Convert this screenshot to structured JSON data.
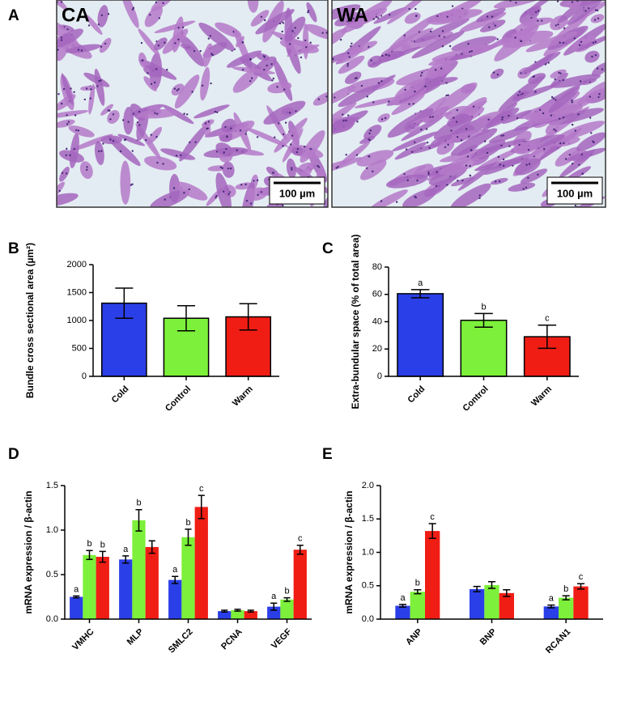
{
  "figure": {
    "panel_a": {
      "label": "A",
      "images": [
        {
          "label": "CA",
          "scale_bar": "100 µm"
        },
        {
          "label": "WA",
          "scale_bar": "100 µm"
        }
      ]
    }
  },
  "chart_data": [
    {
      "type": "bar",
      "panel": "B",
      "ylabel": "Bundle cross sectional area (µm²)",
      "categories": [
        "Cold",
        "Control",
        "Warm"
      ],
      "values": [
        1310,
        1040,
        1065
      ],
      "errors": [
        270,
        225,
        235
      ],
      "colors": [
        "#2b3fe8",
        "#7cf03a",
        "#f01d14"
      ],
      "ylim": [
        0,
        2000
      ],
      "yticks": [
        0,
        500,
        1000,
        1500,
        2000
      ]
    },
    {
      "type": "bar",
      "panel": "C",
      "ylabel": "Extra-bundular space (% of total area)",
      "categories": [
        "Cold",
        "Control",
        "Warm"
      ],
      "values": [
        60.5,
        41,
        29
      ],
      "errors": [
        3,
        5,
        8.5
      ],
      "annotations": [
        "a",
        "b",
        "c"
      ],
      "colors": [
        "#2b3fe8",
        "#7cf03a",
        "#f01d14"
      ],
      "ylim": [
        0,
        80
      ],
      "yticks": [
        0,
        20,
        40,
        60,
        80
      ]
    },
    {
      "type": "grouped_bar",
      "panel": "D",
      "ylabel": "mRNA expression / β-actin",
      "categories": [
        "VMHC",
        "MLP",
        "SMLC2",
        "PCNA",
        "VEGF"
      ],
      "series": [
        {
          "color": "#2b3fe8",
          "values": [
            0.25,
            0.67,
            0.44,
            0.09,
            0.14
          ],
          "errors": [
            0.01,
            0.04,
            0.04,
            0.01,
            0.04
          ],
          "annotations": [
            "a",
            "a",
            "a",
            null,
            "a"
          ]
        },
        {
          "color": "#7cf03a",
          "values": [
            0.72,
            1.11,
            0.92,
            0.1,
            0.22
          ],
          "errors": [
            0.05,
            0.12,
            0.09,
            0.01,
            0.02
          ],
          "annotations": [
            "b",
            "b",
            "b",
            null,
            "b"
          ]
        },
        {
          "color": "#f01d14",
          "values": [
            0.7,
            0.81,
            1.26,
            0.09,
            0.78
          ],
          "errors": [
            0.06,
            0.07,
            0.13,
            0.01,
            0.05
          ],
          "annotations": [
            "b",
            null,
            "c",
            null,
            "c"
          ]
        }
      ],
      "ylim": [
        0,
        1.5
      ],
      "yticks": [
        {
          "value": 0,
          "label": "0.0"
        },
        0.5,
        {
          "value": 1,
          "label": "1.0"
        },
        1.5
      ]
    },
    {
      "type": "grouped_bar",
      "panel": "E",
      "ylabel": "mRNA expression / β-actin",
      "categories": [
        "ANP",
        "BNP",
        "RCAN1"
      ],
      "series": [
        {
          "color": "#2b3fe8",
          "values": [
            0.2,
            0.45,
            0.19
          ],
          "errors": [
            0.02,
            0.04,
            0.02
          ],
          "annotations": [
            "a",
            null,
            "a"
          ]
        },
        {
          "color": "#7cf03a",
          "values": [
            0.41,
            0.51,
            0.32
          ],
          "errors": [
            0.03,
            0.05,
            0.03
          ],
          "annotations": [
            "b",
            null,
            "b"
          ]
        },
        {
          "color": "#f01d14",
          "values": [
            1.32,
            0.39,
            0.49
          ],
          "errors": [
            0.11,
            0.05,
            0.04
          ],
          "annotations": [
            "c",
            null,
            "c"
          ]
        }
      ],
      "ylim": [
        0,
        2
      ],
      "yticks": [
        {
          "value": 0,
          "label": "0.0"
        },
        0.5,
        {
          "value": 1,
          "label": "1.0"
        },
        1.5,
        {
          "value": 2,
          "label": "2.0"
        }
      ]
    }
  ]
}
